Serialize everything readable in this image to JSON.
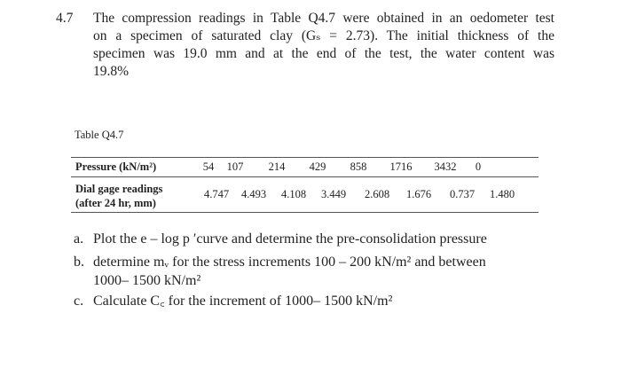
{
  "question": {
    "number": "4.7",
    "intro_lines": [
      "The compression readings in Table Q4.7 were obtained in an oedometer test",
      "on a specimen of saturated clay (Gₛ = 2.73). The initial thickness of the",
      "specimen was 19.0 mm and at the end of the test, the water content was",
      "19.8%"
    ]
  },
  "table": {
    "caption": "Table Q4.7",
    "pressure_label": "Pressure (kN/m²)",
    "dial_label_line1": "Dial gage readings",
    "dial_label_line2": "(after 24 hr, mm)",
    "pressure_values": [
      "54",
      "107",
      "214",
      "429",
      "858",
      "1716",
      "3432",
      "0"
    ],
    "dial_values": [
      "4.747",
      "4.493",
      "4.108",
      "3.449",
      "2.608",
      "1.676",
      "0.737",
      "1.480"
    ]
  },
  "parts": {
    "a_label": "a.",
    "a_text": "Plot the e – log p ′curve and determine the pre-consolidation pressure",
    "b_label": "b.",
    "b_text": "determine mᵥ for the stress increments 100 – 200 kN/m² and between",
    "b_text2": "1000– 1500 kN/m²",
    "c_label": "c.",
    "c_text": "Calculate C꜀ for the increment of 1000– 1500 kN/m²"
  }
}
